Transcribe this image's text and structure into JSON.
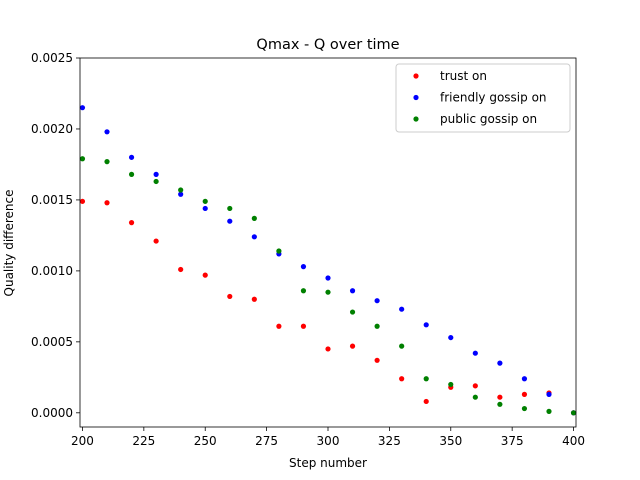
{
  "chart_data": {
    "type": "scatter",
    "title": "Qmax - Q over time",
    "xlabel": "Step number",
    "ylabel": "Quality difference",
    "xlim": [
      199,
      401
    ],
    "ylim": [
      -0.0001,
      0.0025
    ],
    "xticks": [
      "200",
      "225",
      "250",
      "275",
      "300",
      "325",
      "350",
      "375",
      "400"
    ],
    "yticks": [
      "0.0000",
      "0.0005",
      "0.0010",
      "0.0015",
      "0.0020",
      "0.0025"
    ],
    "legend_position": "top-right",
    "x": [
      200,
      210,
      220,
      230,
      240,
      250,
      260,
      270,
      280,
      290,
      300,
      310,
      320,
      330,
      340,
      350,
      360,
      370,
      380,
      390,
      400
    ],
    "series": [
      {
        "name": "trust on",
        "color": "#ff0000",
        "values": [
          0.00149,
          0.00148,
          0.00134,
          0.00121,
          0.00101,
          0.00097,
          0.00082,
          0.0008,
          0.00061,
          0.00061,
          0.00045,
          0.00047,
          0.00037,
          0.00024,
          8e-05,
          0.00018,
          0.00019,
          0.00011,
          0.00013,
          0.00014,
          0.0
        ]
      },
      {
        "name": "friendly gossip on",
        "color": "#0000ff",
        "values": [
          0.00215,
          0.00198,
          0.0018,
          0.00168,
          0.00154,
          0.00144,
          0.00135,
          0.00124,
          0.00112,
          0.00103,
          0.00095,
          0.00086,
          0.00079,
          0.00073,
          0.00062,
          0.00053,
          0.00042,
          0.00035,
          0.00024,
          0.00013,
          0.0
        ]
      },
      {
        "name": "public gossip on",
        "color": "#008000",
        "values": [
          0.00179,
          0.00177,
          0.00168,
          0.00163,
          0.00157,
          0.00149,
          0.00144,
          0.00137,
          0.00114,
          0.00086,
          0.00085,
          0.00071,
          0.00061,
          0.00047,
          0.00024,
          0.0002,
          0.00011,
          6e-05,
          3e-05,
          1e-05,
          0.0
        ]
      }
    ]
  }
}
